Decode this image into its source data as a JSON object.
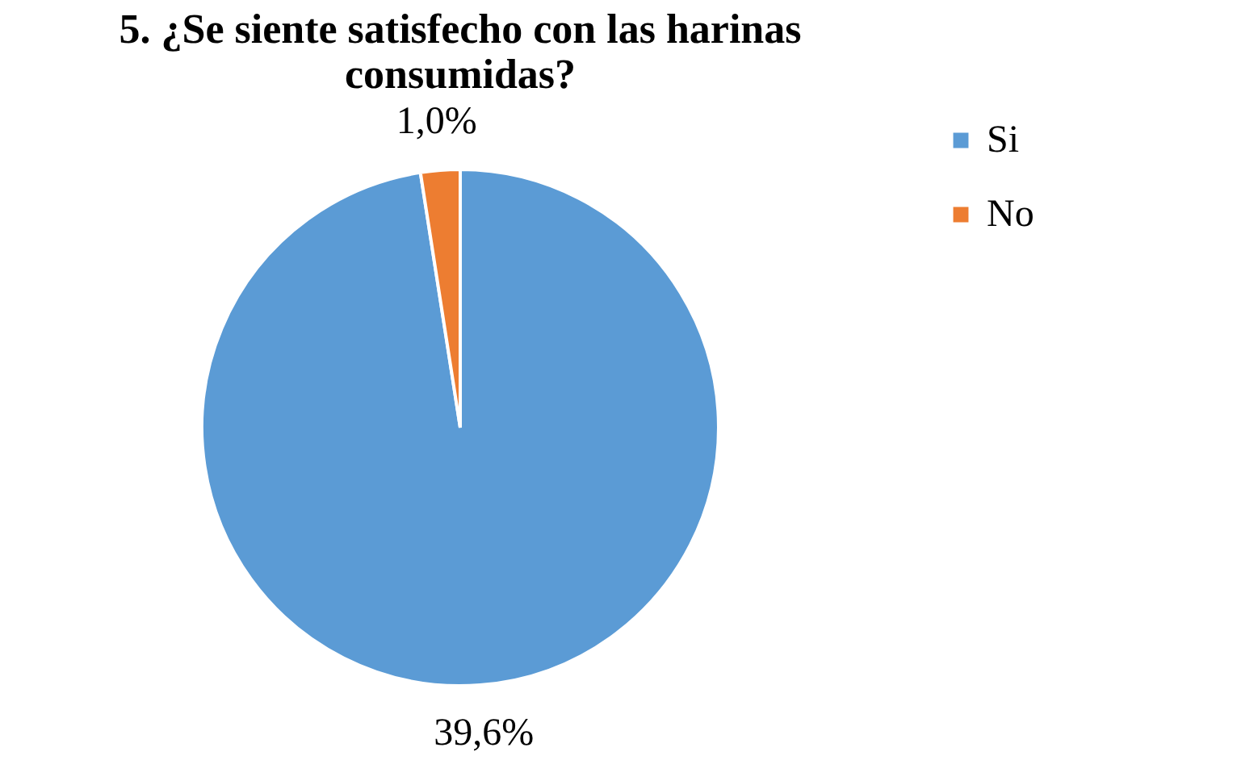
{
  "chart_data": {
    "type": "pie",
    "title": "5. ¿Se siente satisfecho con las harinas consumidas?",
    "categories": [
      "Si",
      "No"
    ],
    "values": [
      39.6,
      1.0
    ],
    "colors": [
      "#5b9bd5",
      "#ed7d31"
    ],
    "value_labels": [
      "39,6%",
      "1,0%"
    ],
    "legend": "right"
  }
}
